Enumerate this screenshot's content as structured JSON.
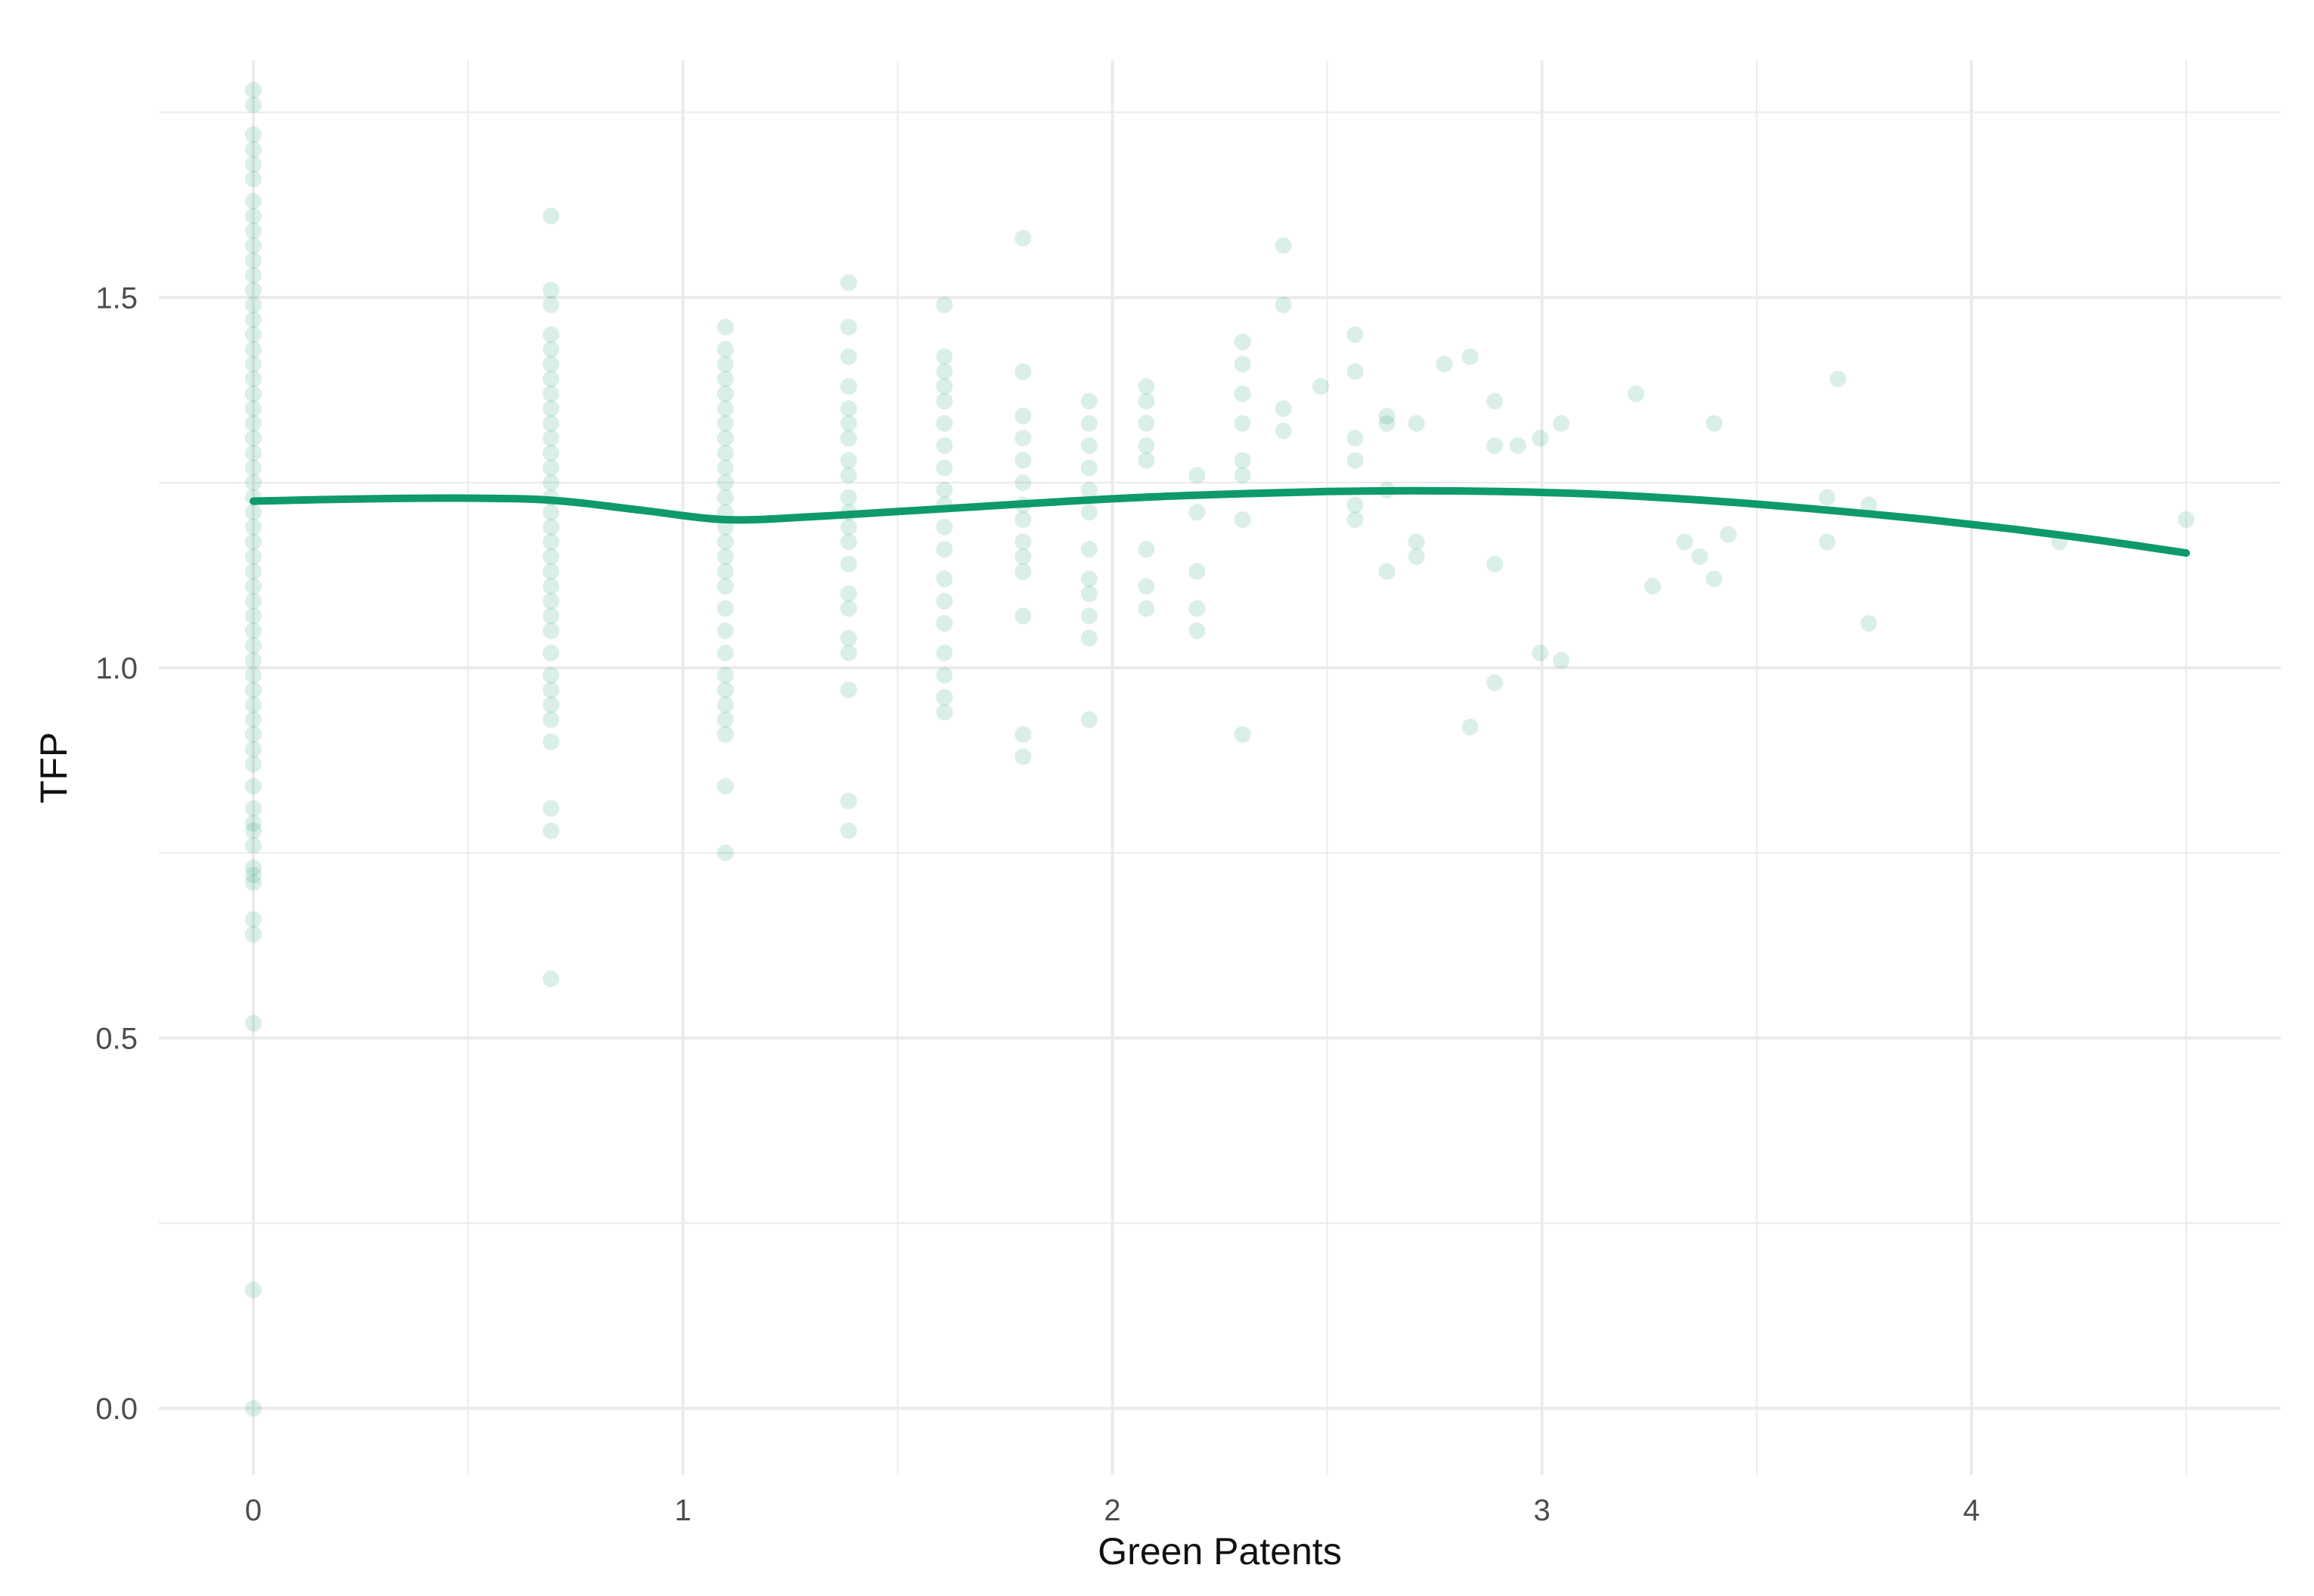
{
  "chart_data": {
    "type": "scatter",
    "title": "",
    "xlabel": "Green Patents",
    "ylabel": "TFP",
    "xlim": [
      -0.22,
      4.72
    ],
    "ylim": [
      -0.09,
      1.82
    ],
    "x_ticks": [
      0,
      1,
      2,
      3,
      4
    ],
    "x_tick_labels": [
      "0",
      "1",
      "2",
      "3",
      "4"
    ],
    "x_minor_ticks": [
      0.5,
      1.5,
      2.5,
      3.5,
      4.5
    ],
    "y_ticks": [
      0.0,
      0.5,
      1.0,
      1.5
    ],
    "y_tick_labels": [
      "0.0",
      "0.5",
      "1.0",
      "1.5"
    ],
    "y_minor_ticks": [
      0.25,
      0.75,
      1.25,
      1.75
    ],
    "grid": true,
    "legend": "none",
    "colors": {
      "point": "#1b9e77",
      "line": "#0e9a6b",
      "grid": "#ebebeb",
      "tick_text": "#4d4d4d"
    },
    "series": [
      {
        "kind": "points",
        "points": [
          [
            0,
            0.0
          ],
          [
            0,
            0.16
          ],
          [
            0,
            0.52
          ],
          [
            0,
            0.64
          ],
          [
            0,
            0.66
          ],
          [
            0,
            0.71
          ],
          [
            0,
            0.72
          ],
          [
            0,
            0.73
          ],
          [
            0,
            0.76
          ],
          [
            0,
            0.78
          ],
          [
            0,
            0.79
          ],
          [
            0,
            0.81
          ],
          [
            0,
            0.84
          ],
          [
            0,
            0.87
          ],
          [
            0,
            0.89
          ],
          [
            0,
            0.91
          ],
          [
            0,
            0.93
          ],
          [
            0,
            0.95
          ],
          [
            0,
            0.97
          ],
          [
            0,
            0.99
          ],
          [
            0,
            1.01
          ],
          [
            0,
            1.03
          ],
          [
            0,
            1.05
          ],
          [
            0,
            1.07
          ],
          [
            0,
            1.09
          ],
          [
            0,
            1.11
          ],
          [
            0,
            1.13
          ],
          [
            0,
            1.15
          ],
          [
            0,
            1.17
          ],
          [
            0,
            1.19
          ],
          [
            0,
            1.21
          ],
          [
            0,
            1.23
          ],
          [
            0,
            1.25
          ],
          [
            0,
            1.27
          ],
          [
            0,
            1.29
          ],
          [
            0,
            1.31
          ],
          [
            0,
            1.33
          ],
          [
            0,
            1.35
          ],
          [
            0,
            1.37
          ],
          [
            0,
            1.39
          ],
          [
            0,
            1.41
          ],
          [
            0,
            1.43
          ],
          [
            0,
            1.45
          ],
          [
            0,
            1.47
          ],
          [
            0,
            1.49
          ],
          [
            0,
            1.51
          ],
          [
            0,
            1.53
          ],
          [
            0,
            1.55
          ],
          [
            0,
            1.57
          ],
          [
            0,
            1.59
          ],
          [
            0,
            1.61
          ],
          [
            0,
            1.63
          ],
          [
            0,
            1.66
          ],
          [
            0,
            1.68
          ],
          [
            0,
            1.7
          ],
          [
            0,
            1.72
          ],
          [
            0,
            1.76
          ],
          [
            0,
            1.78
          ],
          [
            0.693,
            0.58
          ],
          [
            0.693,
            0.78
          ],
          [
            0.693,
            0.81
          ],
          [
            0.693,
            0.9
          ],
          [
            0.693,
            0.93
          ],
          [
            0.693,
            0.95
          ],
          [
            0.693,
            0.97
          ],
          [
            0.693,
            0.99
          ],
          [
            0.693,
            1.02
          ],
          [
            0.693,
            1.05
          ],
          [
            0.693,
            1.07
          ],
          [
            0.693,
            1.09
          ],
          [
            0.693,
            1.11
          ],
          [
            0.693,
            1.13
          ],
          [
            0.693,
            1.15
          ],
          [
            0.693,
            1.17
          ],
          [
            0.693,
            1.19
          ],
          [
            0.693,
            1.21
          ],
          [
            0.693,
            1.23
          ],
          [
            0.693,
            1.25
          ],
          [
            0.693,
            1.27
          ],
          [
            0.693,
            1.29
          ],
          [
            0.693,
            1.31
          ],
          [
            0.693,
            1.33
          ],
          [
            0.693,
            1.35
          ],
          [
            0.693,
            1.37
          ],
          [
            0.693,
            1.39
          ],
          [
            0.693,
            1.41
          ],
          [
            0.693,
            1.43
          ],
          [
            0.693,
            1.45
          ],
          [
            0.693,
            1.49
          ],
          [
            0.693,
            1.51
          ],
          [
            0.693,
            1.61
          ],
          [
            1.099,
            0.75
          ],
          [
            1.099,
            0.84
          ],
          [
            1.099,
            0.91
          ],
          [
            1.099,
            0.93
          ],
          [
            1.099,
            0.95
          ],
          [
            1.099,
            0.97
          ],
          [
            1.099,
            0.99
          ],
          [
            1.099,
            1.02
          ],
          [
            1.099,
            1.05
          ],
          [
            1.099,
            1.08
          ],
          [
            1.099,
            1.11
          ],
          [
            1.099,
            1.13
          ],
          [
            1.099,
            1.15
          ],
          [
            1.099,
            1.17
          ],
          [
            1.099,
            1.19
          ],
          [
            1.099,
            1.21
          ],
          [
            1.099,
            1.23
          ],
          [
            1.099,
            1.25
          ],
          [
            1.099,
            1.27
          ],
          [
            1.099,
            1.29
          ],
          [
            1.099,
            1.31
          ],
          [
            1.099,
            1.33
          ],
          [
            1.099,
            1.35
          ],
          [
            1.099,
            1.37
          ],
          [
            1.099,
            1.39
          ],
          [
            1.099,
            1.41
          ],
          [
            1.099,
            1.43
          ],
          [
            1.099,
            1.46
          ],
          [
            1.386,
            0.78
          ],
          [
            1.386,
            0.82
          ],
          [
            1.386,
            0.97
          ],
          [
            1.386,
            1.02
          ],
          [
            1.386,
            1.04
          ],
          [
            1.386,
            1.08
          ],
          [
            1.386,
            1.1
          ],
          [
            1.386,
            1.14
          ],
          [
            1.386,
            1.17
          ],
          [
            1.386,
            1.19
          ],
          [
            1.386,
            1.21
          ],
          [
            1.386,
            1.23
          ],
          [
            1.386,
            1.26
          ],
          [
            1.386,
            1.28
          ],
          [
            1.386,
            1.31
          ],
          [
            1.386,
            1.33
          ],
          [
            1.386,
            1.35
          ],
          [
            1.386,
            1.38
          ],
          [
            1.386,
            1.42
          ],
          [
            1.386,
            1.46
          ],
          [
            1.386,
            1.52
          ],
          [
            1.609,
            0.94
          ],
          [
            1.609,
            0.96
          ],
          [
            1.609,
            0.99
          ],
          [
            1.609,
            1.02
          ],
          [
            1.609,
            1.06
          ],
          [
            1.609,
            1.09
          ],
          [
            1.609,
            1.12
          ],
          [
            1.609,
            1.16
          ],
          [
            1.609,
            1.19
          ],
          [
            1.609,
            1.22
          ],
          [
            1.609,
            1.24
          ],
          [
            1.609,
            1.27
          ],
          [
            1.609,
            1.3
          ],
          [
            1.609,
            1.33
          ],
          [
            1.609,
            1.36
          ],
          [
            1.609,
            1.38
          ],
          [
            1.609,
            1.4
          ],
          [
            1.609,
            1.42
          ],
          [
            1.609,
            1.49
          ],
          [
            1.792,
            0.88
          ],
          [
            1.792,
            0.91
          ],
          [
            1.792,
            1.07
          ],
          [
            1.792,
            1.13
          ],
          [
            1.792,
            1.15
          ],
          [
            1.792,
            1.17
          ],
          [
            1.792,
            1.2
          ],
          [
            1.792,
            1.22
          ],
          [
            1.792,
            1.25
          ],
          [
            1.792,
            1.28
          ],
          [
            1.792,
            1.31
          ],
          [
            1.792,
            1.34
          ],
          [
            1.792,
            1.4
          ],
          [
            1.792,
            1.58
          ],
          [
            1.946,
            0.93
          ],
          [
            1.946,
            1.04
          ],
          [
            1.946,
            1.07
          ],
          [
            1.946,
            1.1
          ],
          [
            1.946,
            1.12
          ],
          [
            1.946,
            1.16
          ],
          [
            1.946,
            1.21
          ],
          [
            1.946,
            1.24
          ],
          [
            1.946,
            1.27
          ],
          [
            1.946,
            1.3
          ],
          [
            1.946,
            1.33
          ],
          [
            1.946,
            1.36
          ],
          [
            2.079,
            1.08
          ],
          [
            2.079,
            1.11
          ],
          [
            2.079,
            1.16
          ],
          [
            2.079,
            1.28
          ],
          [
            2.079,
            1.3
          ],
          [
            2.079,
            1.33
          ],
          [
            2.079,
            1.36
          ],
          [
            2.079,
            1.38
          ],
          [
            2.197,
            1.05
          ],
          [
            2.197,
            1.08
          ],
          [
            2.197,
            1.13
          ],
          [
            2.197,
            1.21
          ],
          [
            2.197,
            1.26
          ],
          [
            2.303,
            0.91
          ],
          [
            2.303,
            1.2
          ],
          [
            2.303,
            1.26
          ],
          [
            2.303,
            1.28
          ],
          [
            2.303,
            1.33
          ],
          [
            2.303,
            1.37
          ],
          [
            2.303,
            1.41
          ],
          [
            2.303,
            1.44
          ],
          [
            2.398,
            1.32
          ],
          [
            2.398,
            1.35
          ],
          [
            2.398,
            1.49
          ],
          [
            2.398,
            1.57
          ],
          [
            2.485,
            1.38
          ],
          [
            2.565,
            1.2
          ],
          [
            2.565,
            1.22
          ],
          [
            2.565,
            1.28
          ],
          [
            2.565,
            1.31
          ],
          [
            2.565,
            1.4
          ],
          [
            2.565,
            1.45
          ],
          [
            2.639,
            1.13
          ],
          [
            2.639,
            1.24
          ],
          [
            2.639,
            1.33
          ],
          [
            2.639,
            1.34
          ],
          [
            2.708,
            1.15
          ],
          [
            2.708,
            1.17
          ],
          [
            2.708,
            1.33
          ],
          [
            2.773,
            1.41
          ],
          [
            2.833,
            0.92
          ],
          [
            2.833,
            1.42
          ],
          [
            2.89,
            0.98
          ],
          [
            2.89,
            1.14
          ],
          [
            2.89,
            1.3
          ],
          [
            2.89,
            1.36
          ],
          [
            2.944,
            1.3
          ],
          [
            2.996,
            1.02
          ],
          [
            2.996,
            1.31
          ],
          [
            3.045,
            1.01
          ],
          [
            3.045,
            1.33
          ],
          [
            3.219,
            1.37
          ],
          [
            3.258,
            1.11
          ],
          [
            3.332,
            1.17
          ],
          [
            3.367,
            1.15
          ],
          [
            3.401,
            1.12
          ],
          [
            3.401,
            1.33
          ],
          [
            3.434,
            1.18
          ],
          [
            3.664,
            1.17
          ],
          [
            3.664,
            1.23
          ],
          [
            3.689,
            1.39
          ],
          [
            3.761,
            1.06
          ],
          [
            3.761,
            1.22
          ],
          [
            4.205,
            1.17
          ],
          [
            4.5,
            1.2
          ]
        ]
      },
      {
        "kind": "smooth",
        "x": [
          0.0,
          0.25,
          0.5,
          0.7,
          0.9,
          1.1,
          1.3,
          1.5,
          1.7,
          1.9,
          2.1,
          2.3,
          2.5,
          2.7,
          2.9,
          3.1,
          3.3,
          3.5,
          3.7,
          3.9,
          4.1,
          4.3,
          4.5
        ],
        "values": [
          1.225,
          1.228,
          1.229,
          1.226,
          1.213,
          1.2,
          1.204,
          1.211,
          1.218,
          1.225,
          1.231,
          1.235,
          1.238,
          1.239,
          1.238,
          1.235,
          1.229,
          1.221,
          1.211,
          1.2,
          1.187,
          1.172,
          1.155
        ]
      }
    ]
  }
}
